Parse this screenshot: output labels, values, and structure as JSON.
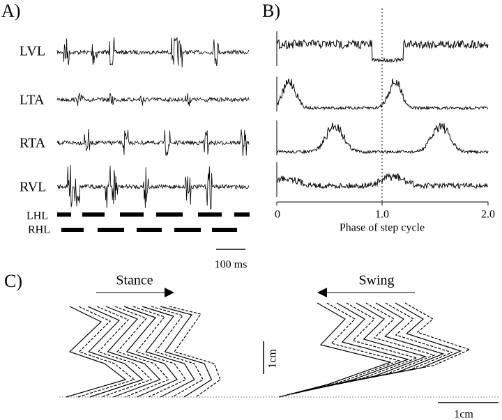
{
  "panels": {
    "a": "A)",
    "b": "B)",
    "c": "C)"
  },
  "panel_a": {
    "traces": [
      "LVL",
      "LTA",
      "RTA",
      "RVL"
    ],
    "bars": [
      "LHL",
      "RHL"
    ],
    "scale_bar": "100 ms"
  },
  "panel_b": {
    "x_tick_labels": [
      "0",
      "1.0",
      "2.0"
    ],
    "x_axis_label": "Phase of step cycle"
  },
  "panel_c": {
    "stance": "Stance",
    "swing": "Swing",
    "scale_vertical": "1cm",
    "scale_horizontal": "1cm"
  }
}
